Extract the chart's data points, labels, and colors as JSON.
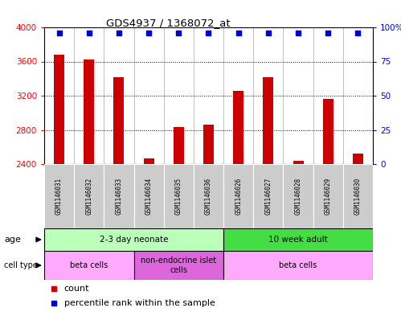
{
  "title": "GDS4937 / 1368072_at",
  "samples": [
    "GSM1146031",
    "GSM1146032",
    "GSM1146033",
    "GSM1146034",
    "GSM1146035",
    "GSM1146036",
    "GSM1146026",
    "GSM1146027",
    "GSM1146028",
    "GSM1146029",
    "GSM1146030"
  ],
  "counts": [
    3680,
    3620,
    3420,
    2470,
    2830,
    2860,
    3260,
    3420,
    2440,
    3160,
    2520
  ],
  "percentiles": [
    99,
    99,
    99,
    99,
    99,
    99,
    99,
    99,
    99,
    99,
    99
  ],
  "ylim_left": [
    2400,
    4000
  ],
  "ylim_right": [
    0,
    100
  ],
  "yticks_left": [
    2400,
    2800,
    3200,
    3600,
    4000
  ],
  "yticks_right": [
    0,
    25,
    50,
    75,
    100
  ],
  "bar_color": "#cc0000",
  "dot_color": "#0000cc",
  "age_groups": [
    {
      "label": "2-3 day neonate",
      "start": 0,
      "end": 6,
      "color": "#bbffbb"
    },
    {
      "label": "10 week adult",
      "start": 6,
      "end": 11,
      "color": "#44dd44"
    }
  ],
  "cell_type_groups": [
    {
      "label": "beta cells",
      "start": 0,
      "end": 3,
      "color": "#ffaaff"
    },
    {
      "label": "non-endocrine islet\ncells",
      "start": 3,
      "end": 6,
      "color": "#dd66dd"
    },
    {
      "label": "beta cells",
      "start": 6,
      "end": 11,
      "color": "#ffaaff"
    }
  ],
  "legend_items": [
    {
      "color": "#cc0000",
      "label": "count"
    },
    {
      "color": "#0000cc",
      "label": "percentile rank within the sample"
    }
  ],
  "bar_width": 0.35,
  "chart_bg": "#ffffff",
  "label_bg": "#cccccc"
}
